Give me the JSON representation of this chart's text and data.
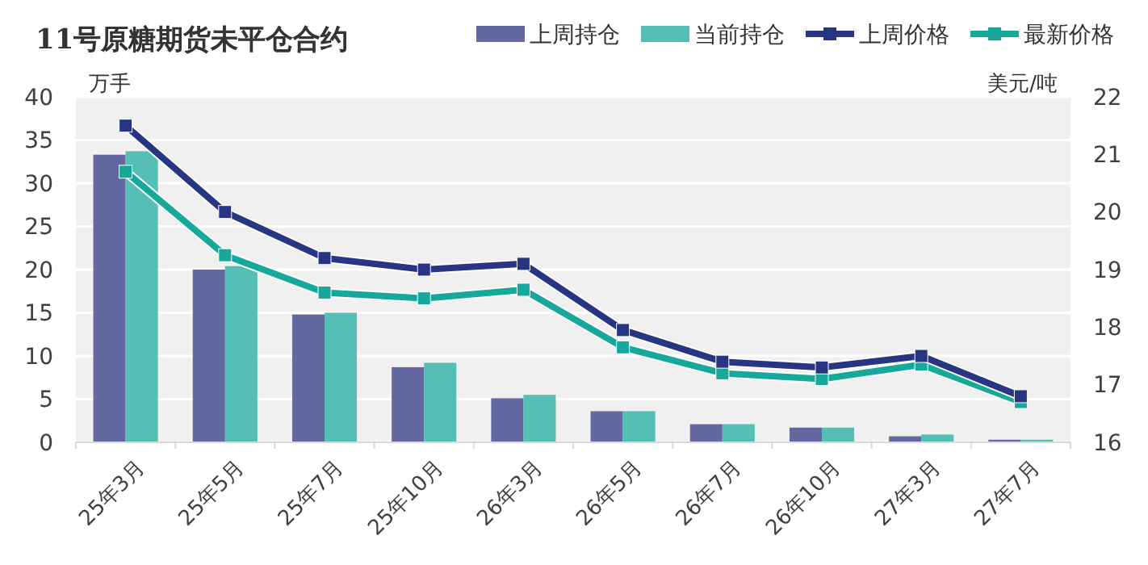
{
  "chart_data": {
    "type": "bar",
    "title": "11号原糖期货未平仓合约",
    "ylabel": "万手",
    "y2label": "美元/吨",
    "categories": [
      "25年3月",
      "25年5月",
      "25年7月",
      "25年10月",
      "26年3月",
      "26年5月",
      "26年7月",
      "26年10月",
      "27年3月",
      "27年7月"
    ],
    "series": [
      {
        "name": "上周持仓",
        "type": "bar",
        "color": "#6369a0",
        "values": [
          33.3,
          20.0,
          14.8,
          8.7,
          5.1,
          3.6,
          2.1,
          1.7,
          0.7,
          0.3
        ]
      },
      {
        "name": "当前持仓",
        "type": "bar",
        "color": "#55bfb5",
        "values": [
          33.7,
          20.4,
          15.0,
          9.2,
          5.5,
          3.6,
          2.1,
          1.7,
          0.9,
          0.3
        ]
      },
      {
        "name": "上周价格",
        "type": "line",
        "axis": "y2",
        "color": "#283583",
        "values": [
          21.5,
          20.0,
          19.2,
          19.0,
          19.1,
          17.95,
          17.4,
          17.3,
          17.5,
          16.8
        ]
      },
      {
        "name": "最新价格",
        "type": "line",
        "axis": "y2",
        "color": "#16a89a",
        "values": [
          20.7,
          19.25,
          18.6,
          18.5,
          18.65,
          17.65,
          17.2,
          17.1,
          17.35,
          16.7
        ]
      }
    ],
    "ylim": [
      0,
      40
    ],
    "yticks": [
      0,
      5,
      10,
      15,
      20,
      25,
      30,
      35,
      40
    ],
    "y2lim": [
      16,
      22
    ],
    "y2ticks": [
      16,
      17,
      18,
      19,
      20,
      21,
      22
    ],
    "grid": "y",
    "legend": "top right",
    "marker": "square",
    "line_style": "solid"
  }
}
